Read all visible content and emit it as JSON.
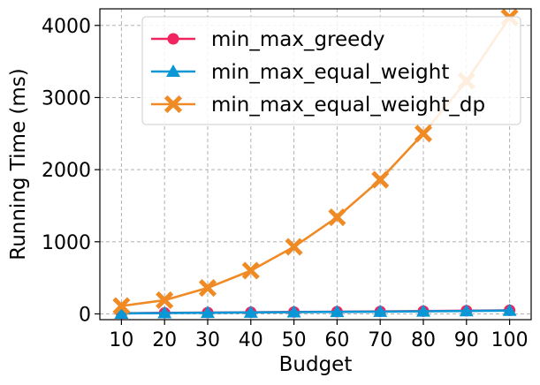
{
  "chart_data": {
    "type": "line",
    "title": "",
    "xlabel": "Budget",
    "ylabel": "Running Time (ms)",
    "x": [
      10,
      20,
      30,
      40,
      50,
      60,
      70,
      80,
      90,
      100
    ],
    "xlim": [
      5,
      105
    ],
    "ylim": [
      -80,
      4230
    ],
    "xticks": [
      10,
      20,
      30,
      40,
      50,
      60,
      70,
      80,
      90,
      100
    ],
    "yticks": [
      0,
      1000,
      2000,
      3000,
      4000
    ],
    "grid": true,
    "legend_position": "top-right",
    "series": [
      {
        "name": "min_max_greedy",
        "color": "#f0245e",
        "marker": "circle",
        "values": [
          8,
          14,
          18,
          22,
          26,
          30,
          34,
          38,
          44,
          50
        ]
      },
      {
        "name": "min_max_equal_weight",
        "color": "#0a97d6",
        "marker": "triangle",
        "values": [
          6,
          12,
          16,
          20,
          24,
          28,
          31,
          35,
          40,
          46
        ]
      },
      {
        "name": "min_max_equal_weight_dp",
        "color": "#f08a24",
        "marker": "x",
        "values": [
          110,
          190,
          360,
          600,
          930,
          1340,
          1860,
          2500,
          3230,
          4110
        ]
      }
    ]
  }
}
